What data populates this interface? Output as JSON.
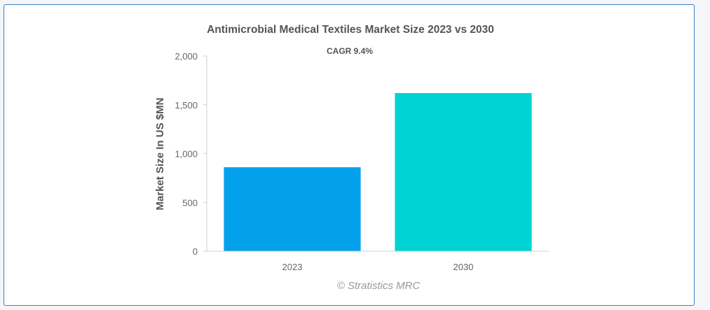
{
  "chart_data": {
    "type": "bar",
    "title": "Antimicrobial Medical Textiles Market Size 2023 vs 2030",
    "subtitle": "CAGR 9.4%",
    "categories": [
      "2023",
      "2030"
    ],
    "values": [
      860,
      1620
    ],
    "colors": [
      "#03a0ec",
      "#00d3d3"
    ],
    "xlabel": "",
    "ylabel": "Market Size In US $MN",
    "ylim": [
      0,
      2000
    ],
    "yticks": [
      0,
      500,
      1000,
      1500,
      2000
    ],
    "ytick_labels": [
      "0",
      "500",
      "1,000",
      "1,500",
      "2,000"
    ],
    "grid": false,
    "legend": "none"
  },
  "credit": "© Stratistics MRC"
}
